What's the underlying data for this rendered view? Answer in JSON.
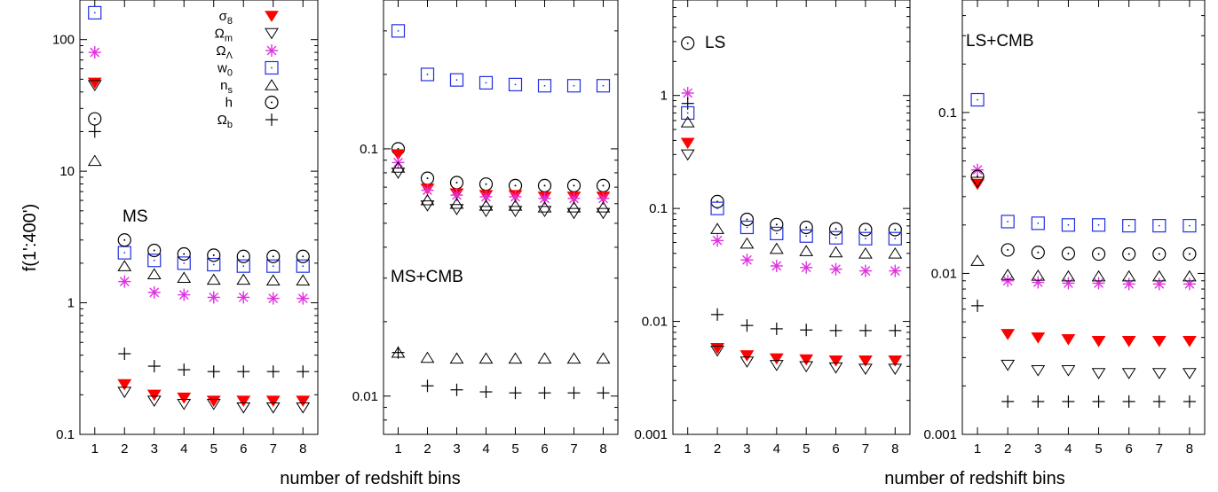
{
  "figure": {
    "ylabel": "f(1':400')",
    "xlabel": "number of redshift bins"
  },
  "legend": {
    "entries": [
      {
        "key": "s8",
        "label": "σ",
        "sub": "8",
        "marker": "tri-down-filled",
        "color": "#ff0000"
      },
      {
        "key": "Om",
        "label": "Ω",
        "sub": "m",
        "marker": "tri-down-open",
        "color": "#000000"
      },
      {
        "key": "OL",
        "label": "Ω",
        "sub": "Λ",
        "marker": "star",
        "color": "#e030e0"
      },
      {
        "key": "w0",
        "label": "w",
        "sub": "0",
        "marker": "square-open",
        "color": "#2030e0"
      },
      {
        "key": "ns",
        "label": "n",
        "sub": "s",
        "marker": "tri-up-open",
        "color": "#000000"
      },
      {
        "key": "h",
        "label": "h",
        "sub": "",
        "marker": "circle-dot",
        "color": "#000000"
      },
      {
        "key": "Ob",
        "label": "Ω",
        "sub": "b",
        "marker": "plus",
        "color": "#000000"
      }
    ]
  },
  "chart_data": [
    {
      "type": "scatter",
      "title": "MS",
      "yscale": "log",
      "ylim": [
        0.1,
        200
      ],
      "yticks": [
        0.1,
        1,
        10,
        100
      ],
      "ytick_labels": [
        "0.1",
        "1",
        "10",
        "100"
      ],
      "x": [
        1,
        2,
        3,
        4,
        5,
        6,
        7,
        8
      ],
      "xtick_labels": [
        "1",
        "2",
        "3",
        "4",
        "5",
        "6",
        "7",
        "8"
      ],
      "series": [
        {
          "key": "w0",
          "values": [
            160,
            2.4,
            2.1,
            2.0,
            1.95,
            1.9,
            1.9,
            1.9
          ]
        },
        {
          "key": "OL",
          "values": [
            80,
            1.45,
            1.2,
            1.15,
            1.1,
            1.1,
            1.08,
            1.08
          ]
        },
        {
          "key": "s8",
          "values": [
            47,
            0.24,
            0.2,
            0.19,
            0.18,
            0.18,
            0.18,
            0.18
          ]
        },
        {
          "key": "Om",
          "values": [
            45,
            0.21,
            0.18,
            0.17,
            0.17,
            0.16,
            0.16,
            0.16
          ]
        },
        {
          "key": "h",
          "values": [
            25,
            3.0,
            2.5,
            2.35,
            2.3,
            2.25,
            2.25,
            2.25
          ]
        },
        {
          "key": "Ob",
          "values": [
            20,
            0.41,
            0.33,
            0.31,
            0.3,
            0.3,
            0.3,
            0.3
          ]
        },
        {
          "key": "ns",
          "values": [
            12,
            1.9,
            1.65,
            1.55,
            1.5,
            1.5,
            1.48,
            1.48
          ]
        }
      ]
    },
    {
      "type": "scatter",
      "title": "MS+CMB",
      "yscale": "log",
      "ylim": [
        0.007,
        0.4
      ],
      "yticks": [
        0.01,
        0.1
      ],
      "ytick_labels": [
        "0.01",
        "0.1"
      ],
      "x": [
        1,
        2,
        3,
        4,
        5,
        6,
        7,
        8
      ],
      "xtick_labels": [
        "1",
        "2",
        "3",
        "4",
        "5",
        "6",
        "7",
        "8"
      ],
      "series": [
        {
          "key": "w0",
          "values": [
            0.3,
            0.2,
            0.19,
            0.185,
            0.182,
            0.18,
            0.18,
            0.18
          ]
        },
        {
          "key": "h",
          "values": [
            0.1,
            0.076,
            0.073,
            0.072,
            0.071,
            0.071,
            0.071,
            0.071
          ]
        },
        {
          "key": "s8",
          "values": [
            0.095,
            0.069,
            0.066,
            0.065,
            0.065,
            0.064,
            0.064,
            0.064
          ]
        },
        {
          "key": "OL",
          "values": [
            0.088,
            0.068,
            0.065,
            0.064,
            0.064,
            0.063,
            0.063,
            0.063
          ]
        },
        {
          "key": "ns",
          "values": [
            0.084,
            0.062,
            0.06,
            0.059,
            0.059,
            0.058,
            0.058,
            0.058
          ]
        },
        {
          "key": "Om",
          "values": [
            0.08,
            0.059,
            0.057,
            0.056,
            0.056,
            0.056,
            0.055,
            0.055
          ]
        },
        {
          "key": "Ob",
          "values": [
            0.015,
            0.011,
            0.0106,
            0.0104,
            0.0103,
            0.0103,
            0.0103,
            0.0103
          ]
        },
        {
          "key": "ns_low",
          "marker_key": "ns",
          "values": [
            0.015,
            0.0143,
            0.0142,
            0.0142,
            0.0142,
            0.0142,
            0.0142,
            0.0142
          ]
        }
      ]
    },
    {
      "type": "scatter",
      "title": "LS",
      "yscale": "log",
      "ylim": [
        0.001,
        7
      ],
      "yticks": [
        0.001,
        0.01,
        0.1,
        1
      ],
      "ytick_labels": [
        "0.001",
        "0.01",
        "0.1",
        "1"
      ],
      "x": [
        1,
        2,
        3,
        4,
        5,
        6,
        7,
        8
      ],
      "xtick_labels": [
        "1",
        "2",
        "3",
        "4",
        "5",
        "6",
        "7",
        "8"
      ],
      "series": [
        {
          "key": "h",
          "values": [
            2.9,
            0.115,
            0.08,
            0.072,
            0.068,
            0.066,
            0.065,
            0.065
          ]
        },
        {
          "key": "OL",
          "values": [
            1.05,
            0.052,
            0.035,
            0.031,
            0.03,
            0.029,
            0.028,
            0.028
          ]
        },
        {
          "key": "Ob",
          "values": [
            0.85,
            0.0115,
            0.0092,
            0.0086,
            0.0084,
            0.0083,
            0.0083,
            0.0083
          ]
        },
        {
          "key": "w0",
          "values": [
            0.7,
            0.1,
            0.068,
            0.06,
            0.057,
            0.055,
            0.054,
            0.054
          ]
        },
        {
          "key": "ns",
          "values": [
            0.58,
            0.066,
            0.049,
            0.044,
            0.042,
            0.041,
            0.04,
            0.04
          ]
        },
        {
          "key": "s8",
          "values": [
            0.38,
            0.0058,
            0.005,
            0.0047,
            0.0046,
            0.0045,
            0.0045,
            0.0045
          ]
        },
        {
          "key": "Om",
          "values": [
            0.3,
            0.0055,
            0.0044,
            0.0041,
            0.004,
            0.0039,
            0.0038,
            0.0038
          ]
        }
      ]
    },
    {
      "type": "scatter",
      "title": "LS+CMB",
      "yscale": "log",
      "ylim": [
        0.001,
        0.5
      ],
      "yticks": [
        0.001,
        0.01,
        0.1
      ],
      "ytick_labels": [
        "0.001",
        "0.01",
        "0.1"
      ],
      "x": [
        1,
        2,
        3,
        4,
        5,
        6,
        7,
        8
      ],
      "xtick_labels": [
        "1",
        "2",
        "3",
        "4",
        "5",
        "6",
        "7",
        "8"
      ],
      "series": [
        {
          "key": "w0",
          "values": [
            0.12,
            0.021,
            0.0205,
            0.02,
            0.02,
            0.0198,
            0.0198,
            0.0198
          ]
        },
        {
          "key": "OL",
          "values": [
            0.044,
            0.009,
            0.0088,
            0.0087,
            0.0087,
            0.0086,
            0.0086,
            0.0086
          ]
        },
        {
          "key": "h",
          "values": [
            0.04,
            0.014,
            0.0135,
            0.0133,
            0.0132,
            0.0132,
            0.0132,
            0.0132
          ]
        },
        {
          "key": "s8",
          "values": [
            0.036,
            0.0042,
            0.004,
            0.0039,
            0.0038,
            0.0038,
            0.0038,
            0.0038
          ]
        },
        {
          "key": "ns",
          "values": [
            0.012,
            0.0098,
            0.0097,
            0.0096,
            0.0096,
            0.0096,
            0.0096,
            0.0096
          ]
        },
        {
          "key": "Ob",
          "values": [
            0.0063,
            0.0016,
            0.0016,
            0.0016,
            0.0016,
            0.0016,
            0.0016,
            0.0016
          ]
        },
        {
          "key": "Om",
          "values": [
            0.037,
            0.0027,
            0.0025,
            0.0025,
            0.0024,
            0.0024,
            0.0024,
            0.0024
          ]
        }
      ]
    }
  ]
}
